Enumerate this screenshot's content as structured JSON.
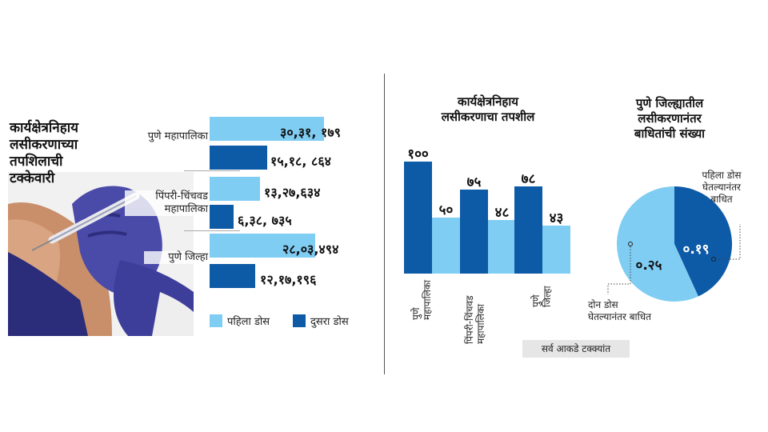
{
  "left_chart": {
    "title_lines": [
      "कार्यक्षेत्रनिहाय",
      "लसीकरणाच्या",
      "तपशिलाची",
      "टक्केवारी"
    ],
    "categories": [
      "पुणे महापालिका",
      "पिंपरी-चिंचवड महापालिका",
      "पुणे जिल्हा"
    ],
    "category_lines": [
      [
        "पुणे महापालिका"
      ],
      [
        "पिंपरी-चिंचवड",
        "महापालिका"
      ],
      [
        "पुणे जिल्हा"
      ]
    ],
    "first_dose_labels": [
      "३०,३१, १७९",
      "१३,२७,६३४",
      "२८,०३,४९४"
    ],
    "second_dose_labels": [
      "१५,१८, ८६४",
      "६,३८, ७३५",
      "१२,१७,१९६"
    ],
    "legend": {
      "first": "पहिला डोस",
      "second": "दुसरा डोस"
    }
  },
  "chart_data": [
    {
      "type": "bar",
      "orientation": "horizontal",
      "categories": [
        "पुणे महापालिका",
        "पिंपरी-चिंचवड महापालिका",
        "पुणे जिल्हा"
      ],
      "series": [
        {
          "name": "पहिला डोस",
          "values": [
            3031179,
            1327634,
            2803494
          ],
          "color": "#7fcdf3"
        },
        {
          "name": "दुसरा डोस",
          "values": [
            1518864,
            638735,
            1217196
          ],
          "color": "#0d5aa7"
        }
      ],
      "legend": "bottom"
    },
    {
      "type": "bar",
      "title": "कार्यक्षेत्रनिहाय लसीकरणाचा तपशील",
      "categories": [
        "पुणे महापालिका",
        "पिंपरी-चिंचवड महापालिका",
        "पुणे जिल्हा"
      ],
      "series": [
        {
          "name": "पहिला डोस",
          "values": [
            100,
            75,
            78
          ],
          "labels": [
            "१००",
            "७५",
            "७८"
          ],
          "color": "#0d5aa7"
        },
        {
          "name": "दुसरा डोस",
          "values": [
            50,
            48,
            43
          ],
          "labels": [
            "५०",
            "४८",
            "४३"
          ],
          "color": "#7fcdf3"
        }
      ],
      "ylim": [
        0,
        100
      ],
      "note": "सर्व आकडे टक्क्यांत"
    },
    {
      "type": "pie",
      "title": "पुणे जिल्ह्यातील लसीकरणानंतर बाधितांची संख्या",
      "slices": [
        {
          "label": "पहिला डोस घेतल्यानंतर बाधित",
          "value": 0.19,
          "display": "०.१९",
          "color": "#0d5aa7"
        },
        {
          "label": "दोन डोस घेतल्यानंतर बाधित",
          "value": 0.25,
          "display": "०.२५",
          "color": "#7fcdf3"
        }
      ]
    }
  ],
  "middle_chart": {
    "title_lines": [
      "कार्यक्षेत्रनिहाय",
      "लसीकरणाचा तपशील"
    ],
    "tick_lines": [
      [
        "पुणे",
        "महापालिका"
      ],
      [
        "पिंपरी-चिंचवड",
        "महापालिका"
      ],
      [
        "पुणे",
        "जिल्हा"
      ]
    ],
    "note": "सर्व आकडे टक्क्यांत"
  },
  "pie_chart": {
    "title_lines": [
      "पुणे जिल्ह्यातील",
      "लसीकरणानंतर",
      "बाधितांची संख्या"
    ],
    "annotation_first_lines": [
      "पहिला डोस",
      "घेतल्यानंतर",
      "बाधित"
    ],
    "annotation_second_lines": [
      "दोन डोस",
      "घेतल्यानंतर बाधित"
    ]
  }
}
